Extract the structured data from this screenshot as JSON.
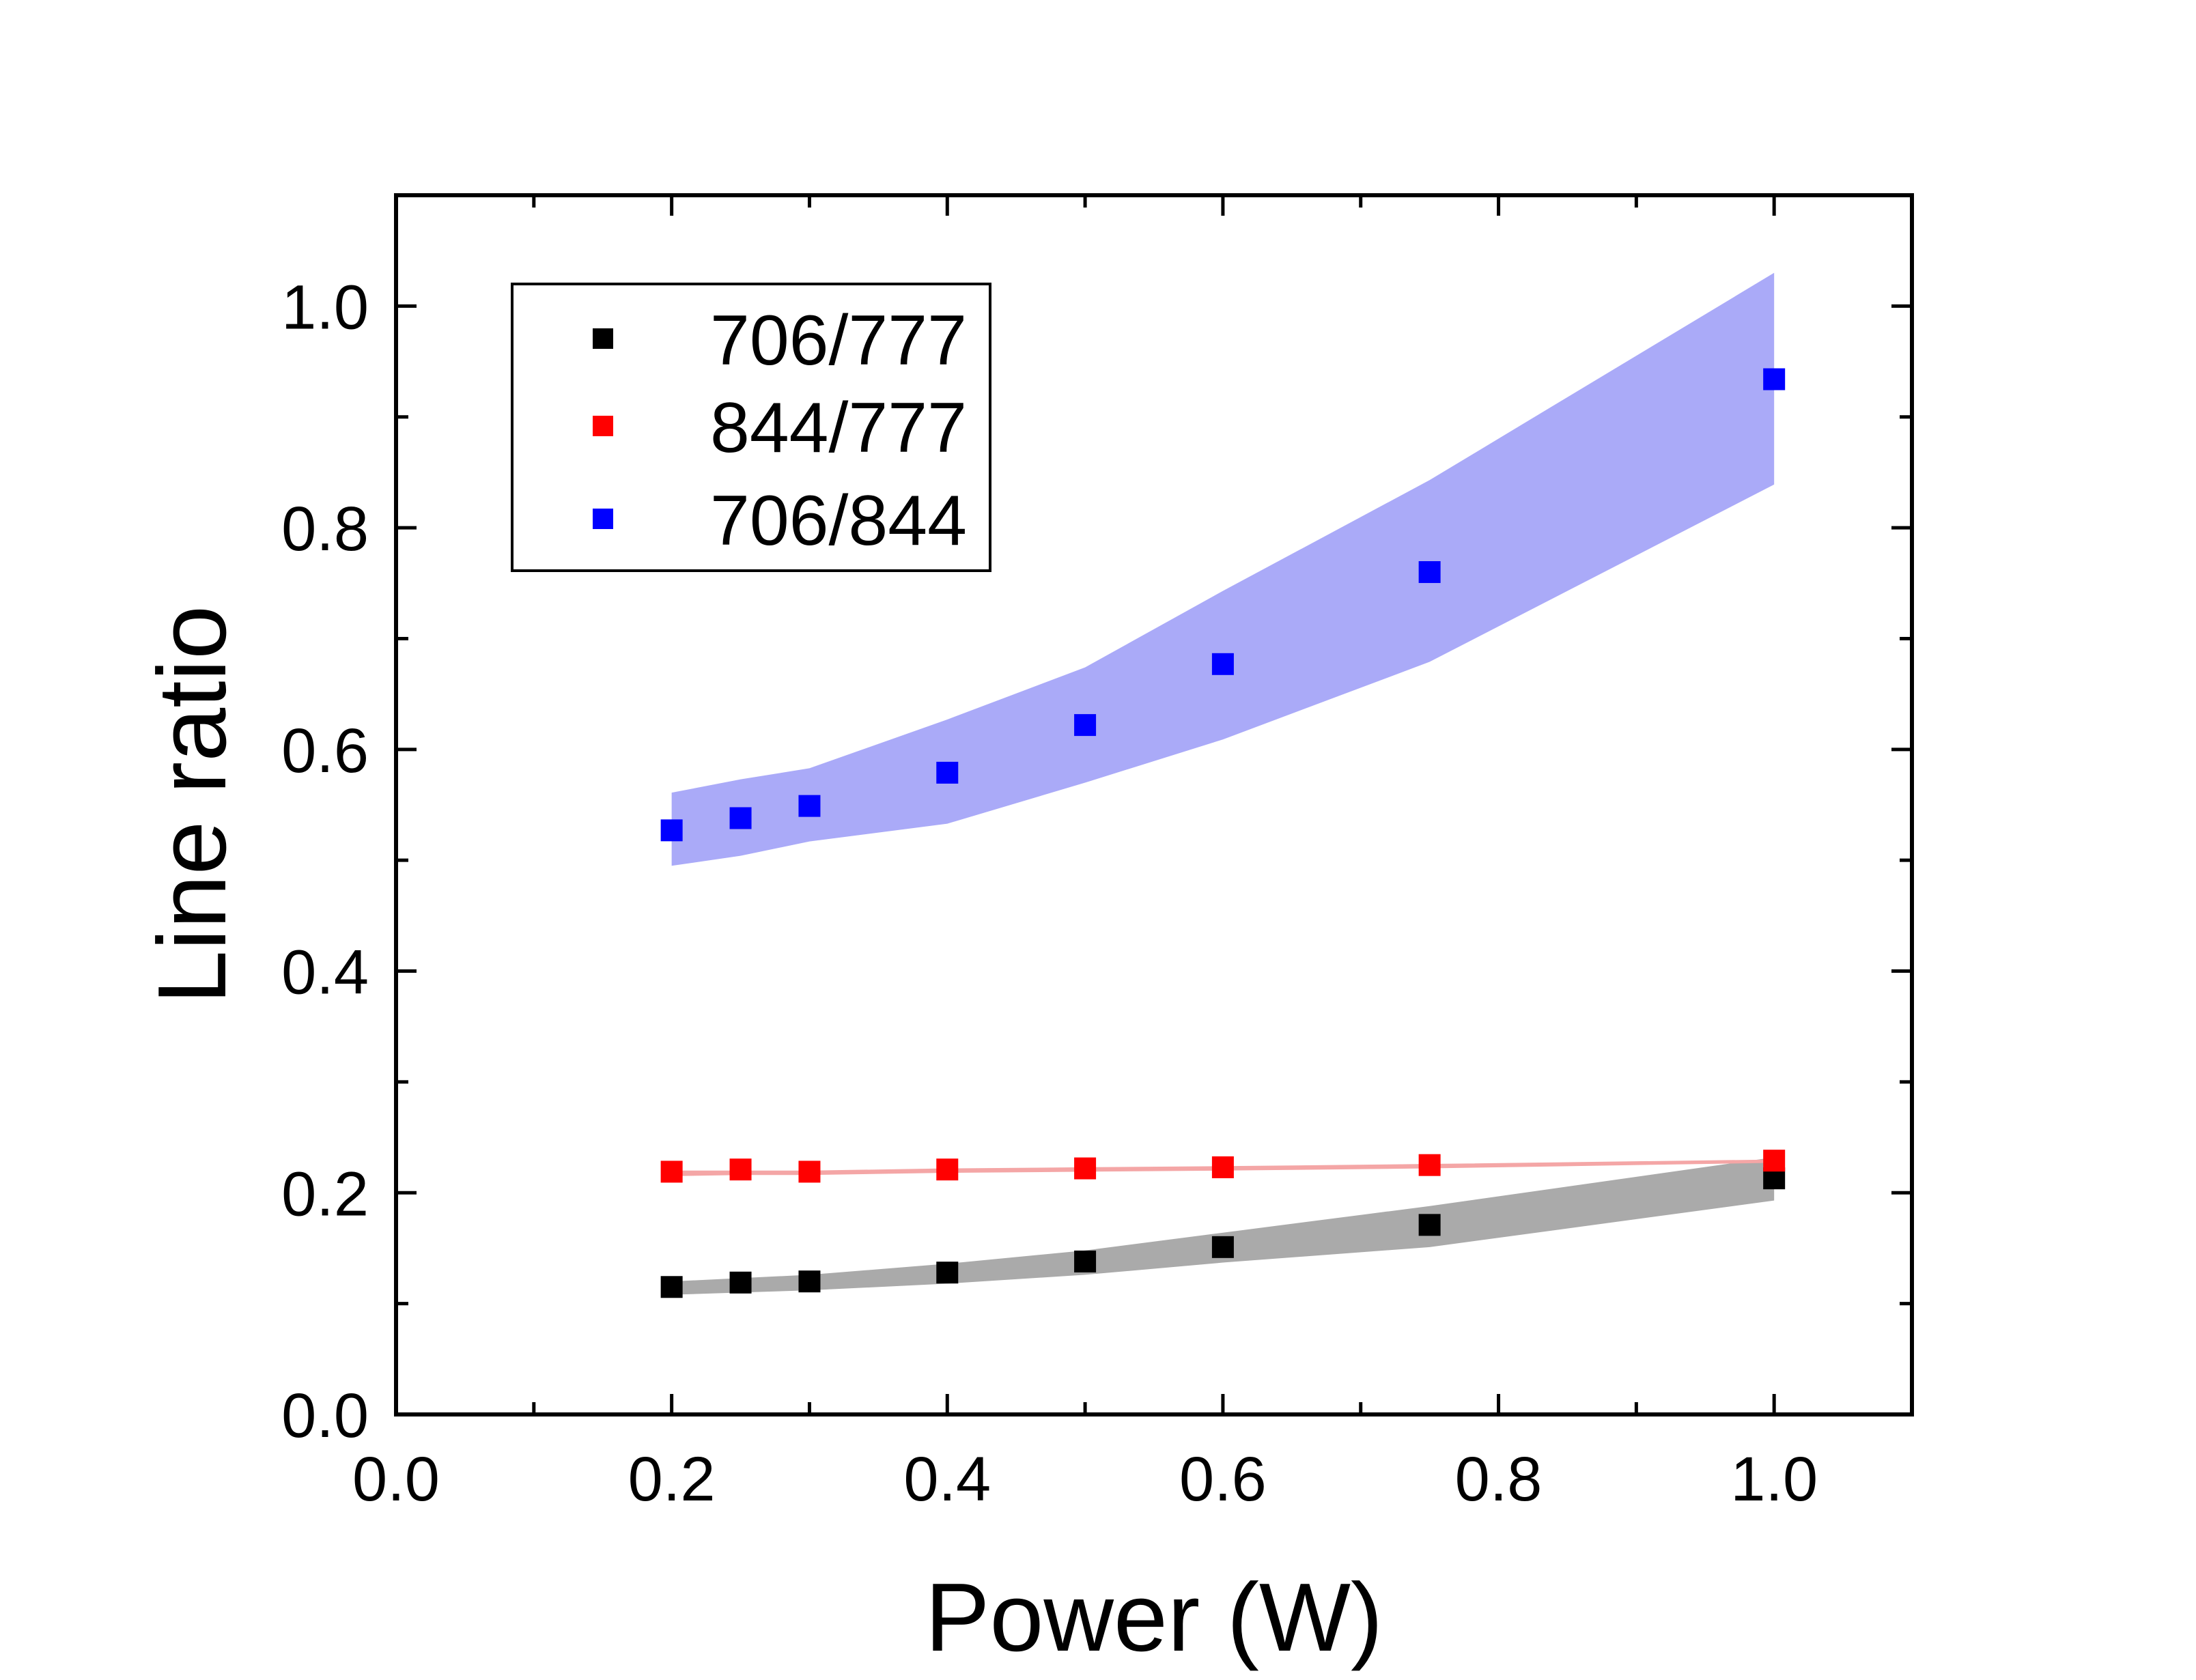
{
  "chart_data": {
    "type": "scatter",
    "title": "",
    "xlabel": "Power (W)",
    "ylabel": "Line ratio",
    "xlim": [
      0.0,
      1.1
    ],
    "ylim": [
      0.0,
      1.1
    ],
    "x_ticks": [
      "0.0",
      "0.2",
      "0.4",
      "0.6",
      "0.8",
      "1.0"
    ],
    "y_ticks": [
      "0.0",
      "0.2",
      "0.4",
      "0.6",
      "0.8",
      "1.0"
    ],
    "grid": false,
    "legend_position": "top-left",
    "x": [
      0.2,
      0.25,
      0.3,
      0.4,
      0.5,
      0.6,
      0.75,
      1.0
    ],
    "series": [
      {
        "name": "706/777",
        "color": "#000000",
        "band_color": "#aaaaaa",
        "values": [
          0.115,
          0.119,
          0.12,
          0.128,
          0.138,
          0.151,
          0.171,
          0.213
        ],
        "band_lower": [
          0.108,
          0.11,
          0.112,
          0.118,
          0.126,
          0.137,
          0.151,
          0.193
        ],
        "band_upper": [
          0.12,
          0.123,
          0.126,
          0.136,
          0.148,
          0.164,
          0.188,
          0.232
        ]
      },
      {
        "name": "844/777",
        "color": "#ff0000",
        "band_color": "#f4a6a6",
        "values": [
          0.219,
          0.221,
          0.219,
          0.221,
          0.222,
          0.223,
          0.225,
          0.229
        ],
        "band_lower": [
          0.215,
          0.216,
          0.216,
          0.218,
          0.219,
          0.22,
          0.222,
          0.227
        ],
        "band_upper": [
          0.22,
          0.22,
          0.22,
          0.222,
          0.223,
          0.224,
          0.226,
          0.23
        ]
      },
      {
        "name": "706/844",
        "color": "#0000ff",
        "band_color": "#aaaaf8",
        "values": [
          0.527,
          0.538,
          0.549,
          0.579,
          0.622,
          0.677,
          0.76,
          0.934
        ],
        "band_lower": [
          0.495,
          0.504,
          0.517,
          0.533,
          0.57,
          0.609,
          0.679,
          0.839
        ],
        "band_upper": [
          0.561,
          0.573,
          0.583,
          0.627,
          0.674,
          0.743,
          0.843,
          1.03
        ]
      }
    ]
  }
}
